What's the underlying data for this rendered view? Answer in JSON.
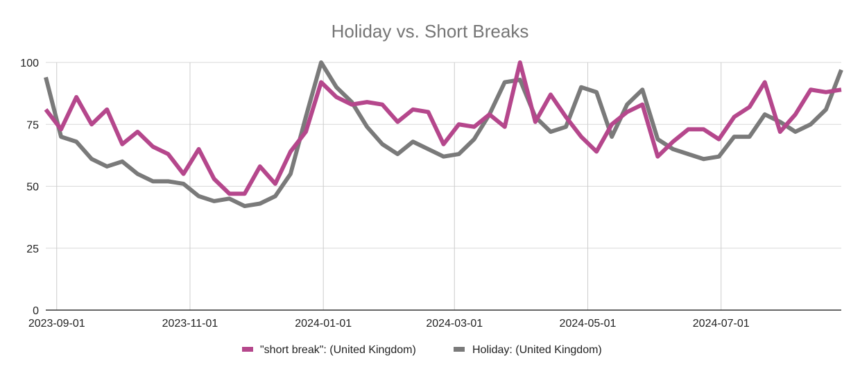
{
  "chart_data": {
    "type": "line",
    "title": "Holiday vs. Short Breaks",
    "xlabel": "",
    "ylabel": "",
    "x_start": "2023-08-27",
    "x_step_days": 7,
    "x_tick_labels": [
      "2023-09-01",
      "2023-11-01",
      "2024-01-01",
      "2024-03-01",
      "2024-05-01",
      "2024-07-01"
    ],
    "y_ticks": [
      0,
      25,
      50,
      75,
      100
    ],
    "ylim": [
      0,
      100
    ],
    "grid": true,
    "legend_position": "bottom",
    "series": [
      {
        "name": "\"short break\": (United Kingdom)",
        "color": "#b5478c",
        "values": [
          81,
          73,
          86,
          75,
          81,
          67,
          72,
          66,
          63,
          55,
          65,
          53,
          47,
          47,
          58,
          51,
          64,
          72,
          92,
          86,
          83,
          84,
          83,
          76,
          81,
          80,
          67,
          75,
          74,
          79,
          74,
          100,
          76,
          87,
          78,
          70,
          64,
          75,
          80,
          83,
          62,
          68,
          73,
          73,
          69,
          78,
          82,
          92,
          72,
          79,
          89,
          88,
          89
        ]
      },
      {
        "name": "Holiday: (United Kingdom)",
        "color": "#7a7a7a",
        "values": [
          94,
          70,
          68,
          61,
          58,
          60,
          55,
          52,
          52,
          51,
          46,
          44,
          45,
          42,
          43,
          46,
          55,
          78,
          100,
          90,
          84,
          74,
          67,
          63,
          68,
          65,
          62,
          63,
          69,
          79,
          92,
          93,
          78,
          72,
          74,
          90,
          88,
          70,
          83,
          89,
          69,
          65,
          63,
          61,
          62,
          70,
          70,
          79,
          76,
          72,
          75,
          81,
          97
        ]
      }
    ]
  }
}
